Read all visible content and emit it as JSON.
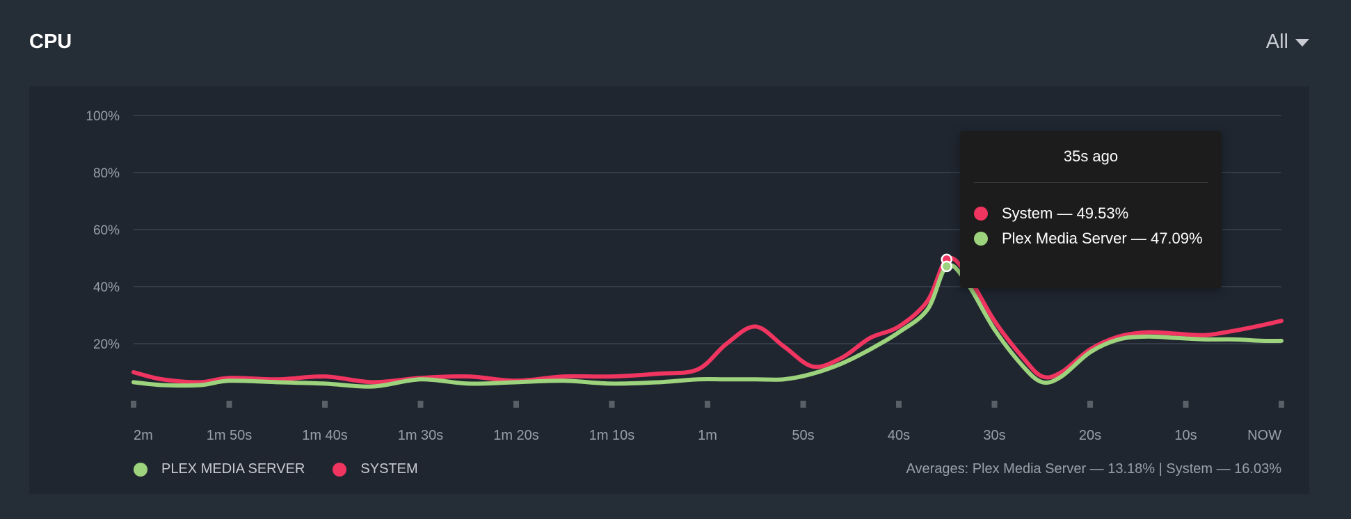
{
  "header": {
    "title": "CPU",
    "range_label": "All"
  },
  "colors": {
    "plex": "#9dd37d",
    "system": "#f03560",
    "grid": "#3a4350",
    "tick_text": "#9aa0a8",
    "panel": "#1f2630"
  },
  "legend": [
    {
      "label": "PLEX MEDIA SERVER",
      "color": "#9dd37d"
    },
    {
      "label": "SYSTEM",
      "color": "#f03560"
    }
  ],
  "averages_text": "Averages: Plex Media Server — 13.18% | System — 16.03%",
  "tooltip": {
    "title": "35s ago",
    "rows": [
      {
        "text": "System — 49.53%",
        "color": "#f03560"
      },
      {
        "text": "Plex Media Server — 47.09%",
        "color": "#9dd37d"
      }
    ]
  },
  "chart_data": {
    "type": "line",
    "x_ticks": [
      "2m",
      "1m 50s",
      "1m 40s",
      "1m 30s",
      "1m 20s",
      "1m 10s",
      "1m",
      "50s",
      "40s",
      "30s",
      "20s",
      "10s",
      "NOW"
    ],
    "y_ticks": [
      "20%",
      "40%",
      "60%",
      "80%",
      "100%"
    ],
    "ylim": [
      0,
      100
    ],
    "x_unit": "seconds ago",
    "highlight_x": 35,
    "series": [
      {
        "name": "System",
        "color": "#f03560",
        "points": [
          [
            120,
            10
          ],
          [
            117,
            7.5
          ],
          [
            113,
            6.5
          ],
          [
            110,
            8
          ],
          [
            105,
            7.5
          ],
          [
            100,
            8.5
          ],
          [
            95,
            6.5
          ],
          [
            90,
            8
          ],
          [
            85,
            8.5
          ],
          [
            80,
            7
          ],
          [
            75,
            8.5
          ],
          [
            70,
            8.5
          ],
          [
            65,
            9.5
          ],
          [
            61,
            11
          ],
          [
            58,
            20
          ],
          [
            55,
            26
          ],
          [
            52,
            19
          ],
          [
            49,
            12
          ],
          [
            46,
            15
          ],
          [
            43,
            22
          ],
          [
            40,
            26
          ],
          [
            37,
            35
          ],
          [
            35,
            49.53
          ],
          [
            33,
            45
          ],
          [
            30,
            28
          ],
          [
            27,
            15
          ],
          [
            25,
            8.5
          ],
          [
            23,
            10
          ],
          [
            20,
            18
          ],
          [
            17,
            22.5
          ],
          [
            14,
            24
          ],
          [
            11,
            23.5
          ],
          [
            8,
            23
          ],
          [
            5,
            24.5
          ],
          [
            2,
            26.5
          ],
          [
            0,
            28
          ]
        ]
      },
      {
        "name": "Plex Media Server",
        "color": "#9dd37d",
        "points": [
          [
            120,
            6.5
          ],
          [
            117,
            5.5
          ],
          [
            113,
            5.5
          ],
          [
            110,
            7
          ],
          [
            105,
            6.5
          ],
          [
            100,
            6
          ],
          [
            95,
            5
          ],
          [
            90,
            7.5
          ],
          [
            85,
            6
          ],
          [
            80,
            6.5
          ],
          [
            75,
            7
          ],
          [
            70,
            6
          ],
          [
            65,
            6.5
          ],
          [
            61,
            7.5
          ],
          [
            58,
            7.5
          ],
          [
            55,
            7.5
          ],
          [
            52,
            7.5
          ],
          [
            49,
            9.5
          ],
          [
            46,
            13
          ],
          [
            43,
            18
          ],
          [
            40,
            24
          ],
          [
            37,
            32
          ],
          [
            35,
            47.09
          ],
          [
            33,
            42
          ],
          [
            30,
            25
          ],
          [
            27,
            12
          ],
          [
            25,
            6.5
          ],
          [
            23,
            8.5
          ],
          [
            20,
            17
          ],
          [
            17,
            21.5
          ],
          [
            14,
            22.5
          ],
          [
            11,
            22
          ],
          [
            8,
            21.5
          ],
          [
            5,
            21.5
          ],
          [
            2,
            21
          ],
          [
            0,
            21
          ]
        ]
      }
    ]
  }
}
